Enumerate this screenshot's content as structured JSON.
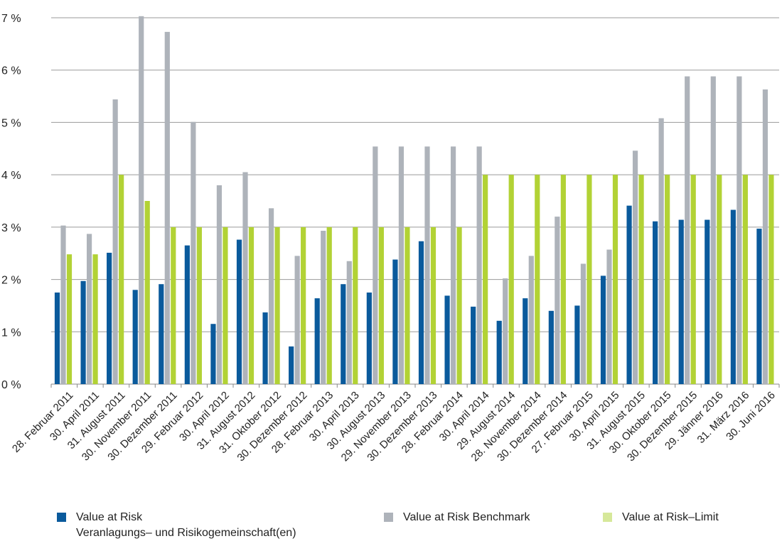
{
  "chart_data": {
    "type": "bar",
    "categories": [
      "28. Februar 2011",
      "30. April 2011",
      "31. August 2011",
      "30. November 2011",
      "30. Dezember 2011",
      "29. Februar 2012",
      "30. April 2012",
      "31. August 2012",
      "31. Oktober 2012",
      "30. Dezember 2012",
      "28. Februar 2013",
      "30. April 2013",
      "30. August 2013",
      "29. November 2013",
      "30. Dezember 2013",
      "28. Februar 2014",
      "30. April 2014",
      "29. August 2014",
      "28. November 2014",
      "30. Dezember 2014",
      "27. Februar 2015",
      "30. April 2015",
      "31. August 2015",
      "30. Oktober 2015",
      "30. Dezember 2015",
      "29. Jänner 2016",
      "31. März 2016",
      "30. Juni 2016"
    ],
    "series": [
      {
        "name": "Value at Risk Veranlagungs– und Risikogemeinschaft(en)",
        "color": "#0a5a9c",
        "values": [
          1.75,
          1.97,
          2.51,
          1.8,
          1.91,
          2.65,
          1.15,
          2.76,
          1.37,
          0.72,
          1.64,
          1.91,
          1.75,
          2.38,
          2.73,
          1.69,
          1.48,
          1.21,
          1.64,
          1.4,
          1.5,
          2.07,
          3.41,
          3.11,
          3.14,
          3.14,
          3.33,
          2.97
        ]
      },
      {
        "name": "Value at Risk Benchmark",
        "color": "#aeb3ba",
        "values": [
          3.03,
          2.87,
          5.44,
          7.03,
          6.73,
          5.01,
          3.8,
          4.05,
          3.36,
          2.45,
          2.93,
          2.35,
          4.54,
          4.54,
          4.54,
          4.54,
          4.54,
          2.02,
          2.45,
          3.2,
          2.3,
          2.57,
          4.46,
          5.08,
          5.88,
          5.88,
          5.88,
          5.63
        ]
      },
      {
        "name": "Value at Risk–Limit",
        "color": "#b2d235",
        "values": [
          2.48,
          2.48,
          4.0,
          3.5,
          3.0,
          3.0,
          3.0,
          3.0,
          3.0,
          3.0,
          3.0,
          3.0,
          3.0,
          3.0,
          3.0,
          3.0,
          4.0,
          4.0,
          4.0,
          4.0,
          4.0,
          4.0,
          4.0,
          4.0,
          4.0,
          4.0,
          4.0,
          4.0
        ]
      }
    ],
    "y_ticks": [
      "0 %",
      "1 %",
      "2 %",
      "3 %",
      "4 %",
      "5 %",
      "6 %",
      "7 %"
    ],
    "ylim": [
      0,
      7
    ],
    "grid": true,
    "legend_placement": "bottom"
  },
  "legend": {
    "var_line1": "Value at Risk",
    "var_line2": "Veranlagungs– und Risikogemeinschaft(en)",
    "benchmark": "Value at Risk Benchmark",
    "limit": "Value at Risk–Limit",
    "limit_swatch_color": "#d6e89a"
  }
}
